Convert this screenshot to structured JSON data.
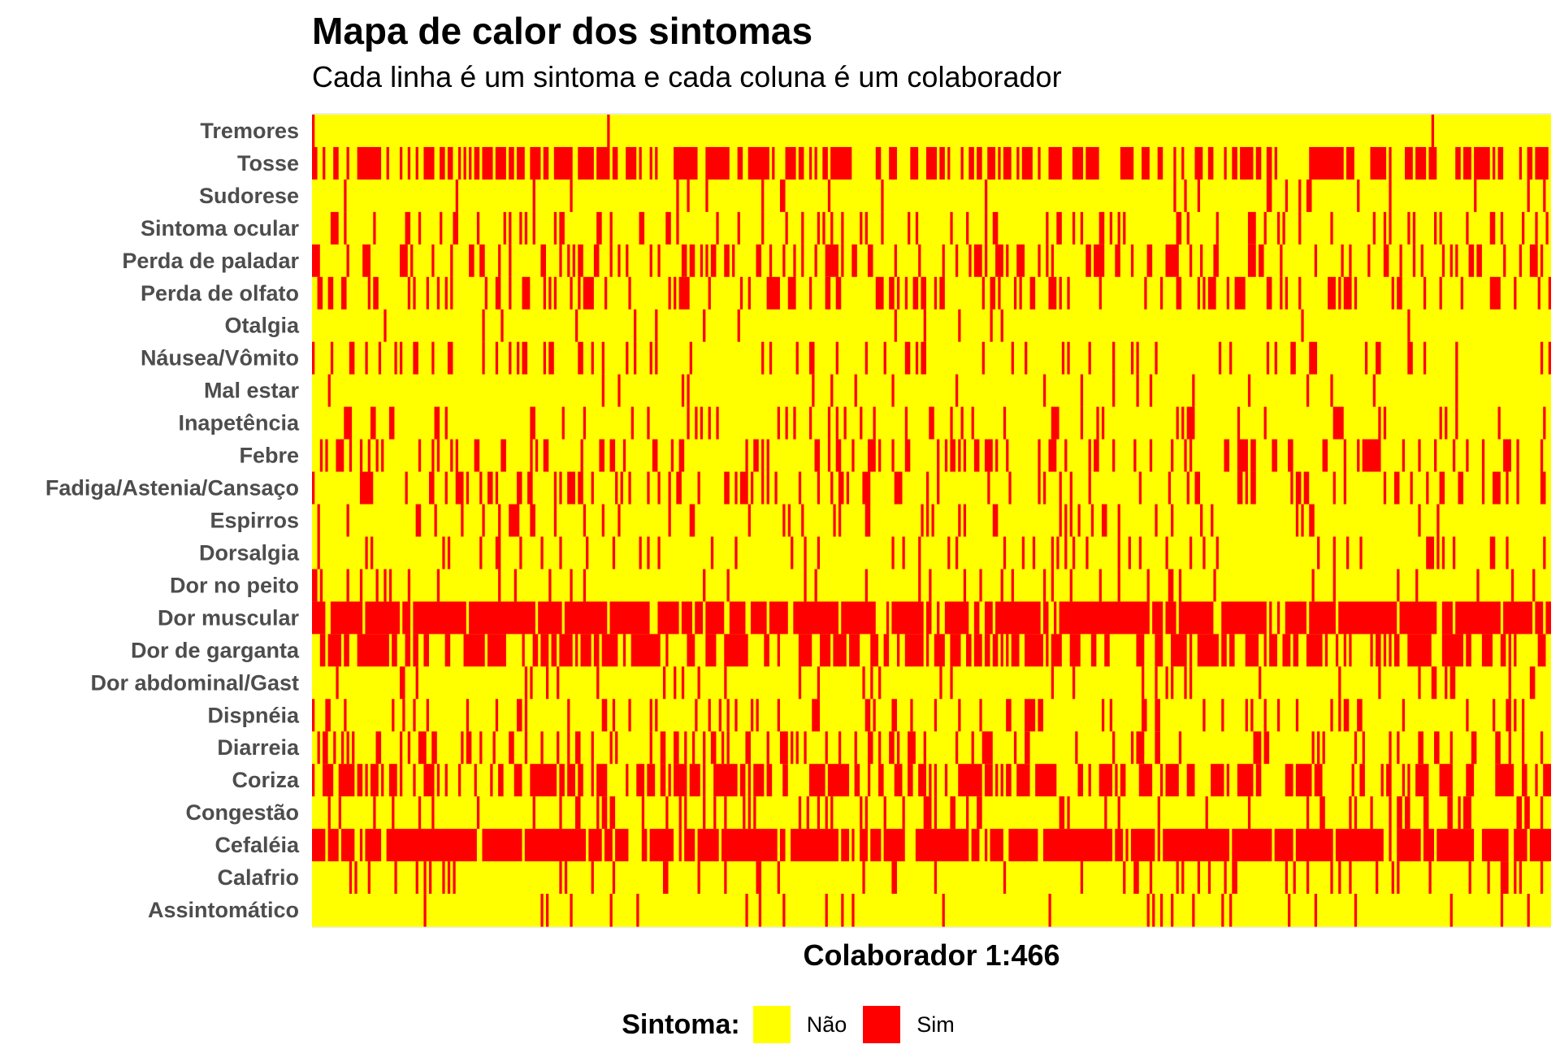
{
  "chart_data": {
    "type": "heatmap",
    "title": "Mapa de calor dos sintomas",
    "subtitle": "Cada linha é um sintoma e cada coluna é um colaborador",
    "xlabel": "Colaborador 1:466",
    "ylabel": "",
    "n_columns": 466,
    "rows": [
      {
        "label": "Tremores",
        "sim_fraction": 0.01
      },
      {
        "label": "Tosse",
        "sim_fraction": 0.42
      },
      {
        "label": "Sudorese",
        "sim_fraction": 0.05
      },
      {
        "label": "Sintoma ocular",
        "sim_fraction": 0.14
      },
      {
        "label": "Perda de paladar",
        "sim_fraction": 0.25
      },
      {
        "label": "Perda de olfato",
        "sim_fraction": 0.22
      },
      {
        "label": "Otalgia",
        "sim_fraction": 0.04
      },
      {
        "label": "Náusea/Vômito",
        "sim_fraction": 0.12
      },
      {
        "label": "Mal estar",
        "sim_fraction": 0.04
      },
      {
        "label": "Inapetência",
        "sim_fraction": 0.13
      },
      {
        "label": "Febre",
        "sim_fraction": 0.26
      },
      {
        "label": "Fadiga/Astenia/Cansaço",
        "sim_fraction": 0.2
      },
      {
        "label": "Espirros",
        "sim_fraction": 0.09
      },
      {
        "label": "Dorsalgia",
        "sim_fraction": 0.11
      },
      {
        "label": "Dor no peito",
        "sim_fraction": 0.08
      },
      {
        "label": "Dor muscular",
        "sim_fraction": 0.55
      },
      {
        "label": "Dor de garganta",
        "sim_fraction": 0.42
      },
      {
        "label": "Dor abdominal/Gast",
        "sim_fraction": 0.09
      },
      {
        "label": "Dispnéia",
        "sim_fraction": 0.14
      },
      {
        "label": "Diarreia",
        "sim_fraction": 0.2
      },
      {
        "label": "Coriza",
        "sim_fraction": 0.38
      },
      {
        "label": "Congestão",
        "sim_fraction": 0.15
      },
      {
        "label": "Cefaléia",
        "sim_fraction": 0.6
      },
      {
        "label": "Calafrio",
        "sim_fraction": 0.1
      },
      {
        "label": "Assintomático",
        "sim_fraction": 0.05
      }
    ],
    "legend": {
      "title": "Sintoma:",
      "position": "bottom",
      "entries": [
        {
          "label": "Não",
          "color": "#FFFF00"
        },
        {
          "label": "Sim",
          "color": "#FF0000"
        }
      ]
    },
    "grid": false
  }
}
